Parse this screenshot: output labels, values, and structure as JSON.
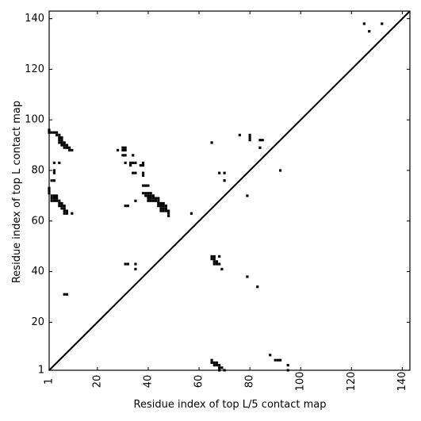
{
  "chart_data": {
    "type": "scatter",
    "title": "",
    "xlabel": "Residue index of top L/5 contact map",
    "ylabel": "Residue index of top L contact map",
    "xlim": [
      1,
      143
    ],
    "ylim": [
      1,
      143
    ],
    "xticks": [
      1,
      20,
      40,
      60,
      80,
      100,
      120,
      140
    ],
    "yticks": [
      1,
      20,
      40,
      60,
      80,
      100,
      120,
      140
    ],
    "diagonal": true,
    "marker": "square",
    "color": "#000000",
    "series": [
      {
        "points": [
          [
            1,
            96
          ],
          [
            1,
            95
          ],
          [
            2,
            95
          ],
          [
            3,
            95
          ],
          [
            4,
            95
          ],
          [
            4,
            94
          ],
          [
            5,
            94
          ],
          [
            5,
            93
          ],
          [
            6,
            93
          ],
          [
            6,
            92
          ],
          [
            5,
            92
          ],
          [
            5,
            91
          ],
          [
            6,
            91
          ],
          [
            7,
            91
          ],
          [
            6,
            90
          ],
          [
            7,
            90
          ],
          [
            8,
            90
          ],
          [
            7,
            89
          ],
          [
            8,
            89
          ],
          [
            9,
            89
          ],
          [
            9,
            88
          ],
          [
            10,
            88
          ],
          [
            3,
            83
          ],
          [
            5,
            83
          ],
          [
            3,
            80
          ],
          [
            3,
            79
          ],
          [
            2,
            76
          ],
          [
            3,
            76
          ],
          [
            1,
            73
          ],
          [
            1,
            72
          ],
          [
            1,
            71
          ],
          [
            2,
            70
          ],
          [
            3,
            70
          ],
          [
            4,
            70
          ],
          [
            2,
            69
          ],
          [
            3,
            69
          ],
          [
            4,
            69
          ],
          [
            2,
            68
          ],
          [
            3,
            68
          ],
          [
            4,
            68
          ],
          [
            5,
            68
          ],
          [
            5,
            67
          ],
          [
            6,
            67
          ],
          [
            5,
            66
          ],
          [
            6,
            66
          ],
          [
            7,
            66
          ],
          [
            6,
            65
          ],
          [
            7,
            65
          ],
          [
            7,
            64
          ],
          [
            8,
            64
          ],
          [
            7,
            63
          ],
          [
            8,
            63
          ],
          [
            10,
            63
          ],
          [
            7,
            31
          ],
          [
            8,
            31
          ],
          [
            28,
            88
          ],
          [
            30,
            88
          ],
          [
            31,
            88
          ],
          [
            30,
            89
          ],
          [
            31,
            89
          ],
          [
            30,
            86
          ],
          [
            31,
            86
          ],
          [
            34,
            86
          ],
          [
            31,
            83
          ],
          [
            33,
            83
          ],
          [
            34,
            83
          ],
          [
            35,
            83
          ],
          [
            33,
            82
          ],
          [
            37,
            82
          ],
          [
            38,
            82
          ],
          [
            38,
            83
          ],
          [
            34,
            79
          ],
          [
            35,
            79
          ],
          [
            38,
            79
          ],
          [
            38,
            78
          ],
          [
            38,
            74
          ],
          [
            39,
            74
          ],
          [
            40,
            74
          ],
          [
            38,
            71
          ],
          [
            39,
            71
          ],
          [
            40,
            71
          ],
          [
            41,
            71
          ],
          [
            39,
            70
          ],
          [
            40,
            70
          ],
          [
            41,
            70
          ],
          [
            42,
            70
          ],
          [
            40,
            69
          ],
          [
            41,
            69
          ],
          [
            42,
            69
          ],
          [
            43,
            69
          ],
          [
            44,
            69
          ],
          [
            40,
            68
          ],
          [
            41,
            68
          ],
          [
            42,
            68
          ],
          [
            43,
            68
          ],
          [
            44,
            68
          ],
          [
            35,
            68
          ],
          [
            44,
            67
          ],
          [
            45,
            67
          ],
          [
            46,
            67
          ],
          [
            44,
            66
          ],
          [
            45,
            66
          ],
          [
            46,
            66
          ],
          [
            47,
            66
          ],
          [
            45,
            65
          ],
          [
            46,
            65
          ],
          [
            47,
            65
          ],
          [
            45,
            64
          ],
          [
            46,
            64
          ],
          [
            47,
            64
          ],
          [
            48,
            64
          ],
          [
            48,
            63
          ],
          [
            48,
            62
          ],
          [
            31,
            66
          ],
          [
            32,
            66
          ],
          [
            57,
            63
          ],
          [
            31,
            43
          ],
          [
            32,
            43
          ],
          [
            35,
            43
          ],
          [
            35,
            41
          ],
          [
            65,
            91
          ],
          [
            76,
            94
          ],
          [
            80,
            94
          ],
          [
            80,
            93
          ],
          [
            80,
            92
          ],
          [
            84,
            92
          ],
          [
            85,
            92
          ],
          [
            84,
            89
          ],
          [
            68,
            79
          ],
          [
            70,
            79
          ],
          [
            70,
            76
          ],
          [
            79,
            70
          ],
          [
            92,
            80
          ],
          [
            65,
            46
          ],
          [
            66,
            46
          ],
          [
            68,
            46
          ],
          [
            65,
            45
          ],
          [
            66,
            45
          ],
          [
            66,
            44
          ],
          [
            67,
            44
          ],
          [
            66,
            43
          ],
          [
            67,
            43
          ],
          [
            68,
            43
          ],
          [
            69,
            41
          ],
          [
            79,
            38
          ],
          [
            83,
            34
          ],
          [
            125,
            138
          ],
          [
            132,
            138
          ],
          [
            127,
            135
          ],
          [
            65,
            5
          ],
          [
            65,
            4
          ],
          [
            66,
            4
          ],
          [
            67,
            4
          ],
          [
            66,
            3
          ],
          [
            67,
            3
          ],
          [
            68,
            3
          ],
          [
            68,
            2
          ],
          [
            69,
            2
          ],
          [
            68,
            1
          ],
          [
            70,
            1
          ],
          [
            88,
            7
          ],
          [
            90,
            5
          ],
          [
            91,
            5
          ],
          [
            92,
            5
          ],
          [
            95,
            3
          ],
          [
            95,
            1
          ]
        ]
      }
    ]
  }
}
